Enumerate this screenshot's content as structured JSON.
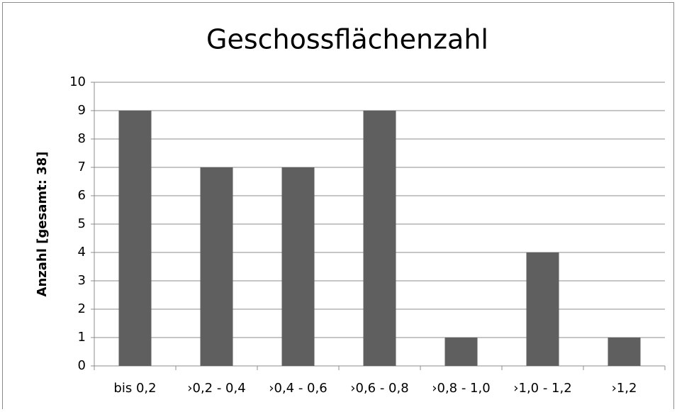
{
  "chart_data": {
    "type": "bar",
    "title": "Geschossflächenzahl",
    "ylabel": "Anzahl [gesamt: 38]",
    "categories": [
      "bis 0,2",
      "›0,2 - 0,4",
      "›0,4 - 0,6",
      "›0,6 - 0,8",
      "›0,8 - 1,0",
      "›1,0 - 1,2",
      "›1,2"
    ],
    "values": [
      9,
      7,
      7,
      9,
      1,
      4,
      1
    ],
    "color": "#5f5f5f",
    "ylim": [
      0,
      10
    ],
    "yticks": [
      0,
      1,
      2,
      3,
      4,
      5,
      6,
      7,
      8,
      9,
      10
    ],
    "grid": true
  }
}
